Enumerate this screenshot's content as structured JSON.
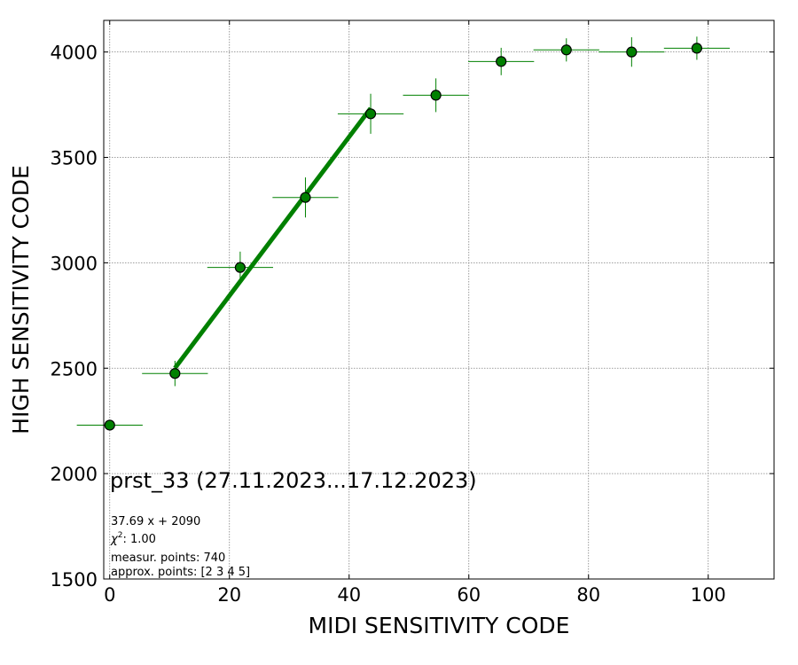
{
  "chart_data": {
    "type": "scatter",
    "title": "",
    "xlabel": "MIDI SENSITIVITY CODE",
    "ylabel": "HIGH SENSITIVITY CODE",
    "xlim": [
      -1,
      111
    ],
    "ylim": [
      1500,
      4150
    ],
    "xticks": [
      "0",
      "20",
      "40",
      "60",
      "80",
      "100"
    ],
    "yticks": [
      "1500",
      "2000",
      "2500",
      "3000",
      "3500",
      "4000"
    ],
    "grid": true,
    "colors": {
      "marker": "#008000",
      "marker_edge": "#000000",
      "fit_line": "#008000",
      "grid": "#808080"
    },
    "points": [
      {
        "x": 0.0,
        "y": 2230,
        "xerr": 5.5,
        "yerr": 10
      },
      {
        "x": 10.9,
        "y": 2475,
        "xerr": 5.5,
        "yerr": 60
      },
      {
        "x": 21.8,
        "y": 2978,
        "xerr": 5.5,
        "yerr": 75
      },
      {
        "x": 32.7,
        "y": 3310,
        "xerr": 5.5,
        "yerr": 95
      },
      {
        "x": 43.6,
        "y": 3707,
        "xerr": 5.5,
        "yerr": 95
      },
      {
        "x": 54.5,
        "y": 3795,
        "xerr": 5.5,
        "yerr": 80
      },
      {
        "x": 65.4,
        "y": 3955,
        "xerr": 5.5,
        "yerr": 65
      },
      {
        "x": 76.3,
        "y": 4010,
        "xerr": 5.5,
        "yerr": 55
      },
      {
        "x": 87.2,
        "y": 4000,
        "xerr": 5.5,
        "yerr": 70
      },
      {
        "x": 98.1,
        "y": 4018,
        "xerr": 5.5,
        "yerr": 55
      }
    ],
    "fit": {
      "slope": 37.69,
      "intercept": 2090,
      "x_range": [
        10.9,
        43.6
      ]
    },
    "annotations": {
      "label": "prst_33 (27.11.2023...17.12.2023)",
      "equation": "37.69 x + 2090",
      "chi2_prefix": "χ",
      "chi2_sup": "2",
      "chi2_value": ": 1.00",
      "measur_points": "measur. points: 740",
      "approx_points": "approx. points: [2 3 4 5]"
    }
  }
}
